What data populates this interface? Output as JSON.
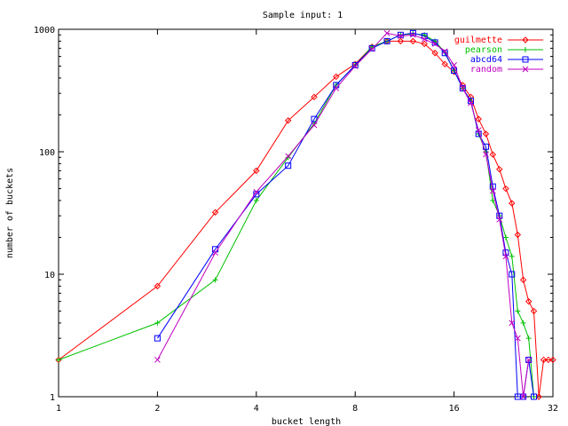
{
  "chart_data": {
    "type": "line",
    "title": "Sample input: 1",
    "xlabel": "bucket length",
    "ylabel": "number of buckets",
    "xscale": "log2",
    "yscale": "log10",
    "xlim": [
      1,
      32
    ],
    "ylim": [
      1,
      1000
    ],
    "x_ticks": [
      1,
      2,
      4,
      8,
      16,
      32
    ],
    "x_tick_labels": [
      "1",
      "2",
      "4",
      "8",
      "16",
      "32"
    ],
    "y_ticks": [
      1,
      10,
      100,
      1000
    ],
    "y_tick_labels": [
      "1",
      "10",
      "100",
      "1000"
    ],
    "grid": false,
    "legend_position": "top-right",
    "series": [
      {
        "name": "guilmette",
        "color": "#ff0000",
        "marker": "diamond",
        "points": [
          [
            1,
            2
          ],
          [
            2,
            8
          ],
          [
            3,
            32
          ],
          [
            4,
            70
          ],
          [
            5,
            180
          ],
          [
            6,
            280
          ],
          [
            7,
            410
          ],
          [
            8,
            520
          ],
          [
            9,
            720
          ],
          [
            10,
            800
          ],
          [
            11,
            800
          ],
          [
            12,
            800
          ],
          [
            13,
            760
          ],
          [
            14,
            640
          ],
          [
            15,
            520
          ],
          [
            16,
            450
          ],
          [
            17,
            350
          ],
          [
            18,
            280
          ],
          [
            19,
            185
          ],
          [
            20,
            140
          ],
          [
            21,
            95
          ],
          [
            22,
            72
          ],
          [
            23,
            50
          ],
          [
            24,
            38
          ],
          [
            25,
            21
          ],
          [
            26,
            9
          ],
          [
            27,
            6
          ],
          [
            28,
            5
          ],
          [
            29,
            1
          ],
          [
            30,
            2
          ],
          [
            31,
            2
          ],
          [
            32,
            2
          ]
        ]
      },
      {
        "name": "pearson",
        "color": "#00c000",
        "marker": "plus",
        "points": [
          [
            1,
            2
          ],
          [
            2,
            4
          ],
          [
            3,
            9
          ],
          [
            4,
            40
          ],
          [
            5,
            90
          ],
          [
            6,
            170
          ],
          [
            7,
            350
          ],
          [
            8,
            510
          ],
          [
            9,
            720
          ],
          [
            10,
            800
          ],
          [
            11,
            900
          ],
          [
            12,
            920
          ],
          [
            13,
            900
          ],
          [
            14,
            800
          ],
          [
            15,
            650
          ],
          [
            16,
            460
          ],
          [
            17,
            330
          ],
          [
            18,
            260
          ],
          [
            19,
            140
          ],
          [
            20,
            100
          ],
          [
            21,
            40
          ],
          [
            22,
            30
          ],
          [
            23,
            20
          ],
          [
            24,
            14
          ],
          [
            25,
            5
          ],
          [
            26,
            4
          ],
          [
            27,
            3
          ],
          [
            28,
            1
          ]
        ]
      },
      {
        "name": "abcd64",
        "color": "#0000ff",
        "marker": "square",
        "points": [
          [
            2,
            3
          ],
          [
            3,
            16
          ],
          [
            4,
            45
          ],
          [
            5,
            77
          ],
          [
            6,
            185
          ],
          [
            7,
            350
          ],
          [
            8,
            510
          ],
          [
            9,
            700
          ],
          [
            10,
            800
          ],
          [
            11,
            900
          ],
          [
            12,
            930
          ],
          [
            13,
            880
          ],
          [
            14,
            780
          ],
          [
            15,
            640
          ],
          [
            16,
            460
          ],
          [
            17,
            330
          ],
          [
            18,
            260
          ],
          [
            19,
            140
          ],
          [
            20,
            110
          ],
          [
            21,
            52
          ],
          [
            22,
            30
          ],
          [
            23,
            15
          ],
          [
            24,
            10
          ],
          [
            25,
            1
          ],
          [
            26,
            1
          ],
          [
            27,
            2
          ],
          [
            28,
            1
          ]
        ]
      },
      {
        "name": "random",
        "color": "#c000c0",
        "marker": "x",
        "points": [
          [
            2,
            2
          ],
          [
            3,
            15
          ],
          [
            4,
            47
          ],
          [
            5,
            92
          ],
          [
            6,
            165
          ],
          [
            7,
            330
          ],
          [
            8,
            500
          ],
          [
            9,
            690
          ],
          [
            10,
            930
          ],
          [
            11,
            880
          ],
          [
            12,
            900
          ],
          [
            13,
            830
          ],
          [
            14,
            760
          ],
          [
            15,
            660
          ],
          [
            16,
            510
          ],
          [
            17,
            330
          ],
          [
            18,
            250
          ],
          [
            19,
            150
          ],
          [
            20,
            95
          ],
          [
            21,
            48
          ],
          [
            22,
            28
          ],
          [
            23,
            14
          ],
          [
            24,
            4
          ],
          [
            25,
            3
          ],
          [
            26,
            1
          ],
          [
            27,
            2
          ]
        ]
      }
    ]
  }
}
